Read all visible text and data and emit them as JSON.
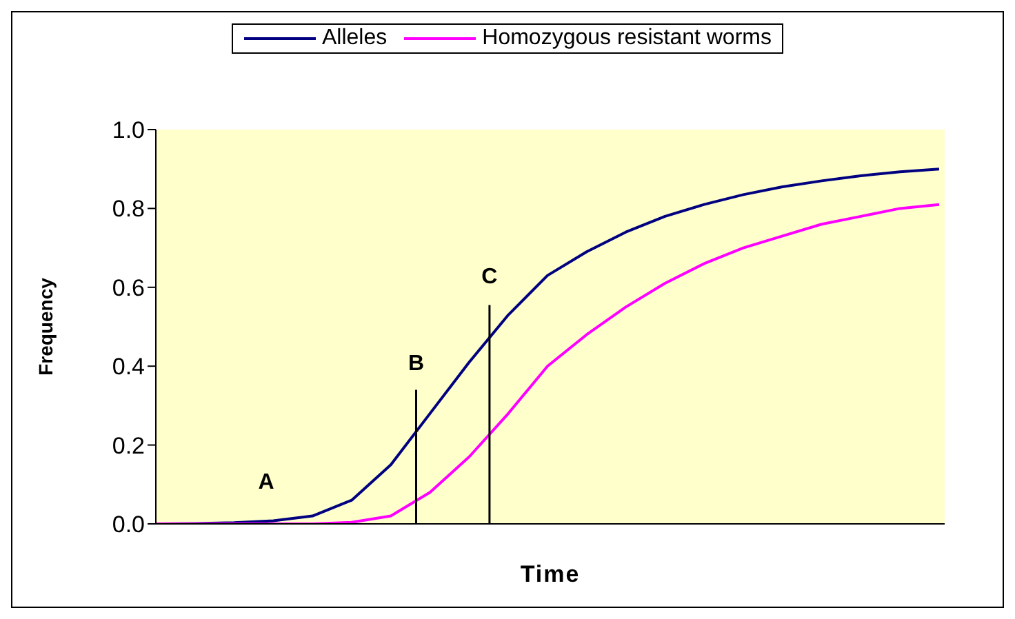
{
  "chart_data": {
    "type": "line",
    "xlabel": "Time",
    "ylabel": "Frequency",
    "categories": [
      null,
      null,
      null,
      null,
      null,
      null,
      null,
      null,
      null,
      null,
      null,
      null,
      null,
      null,
      null,
      null,
      null,
      null,
      null,
      null,
      null
    ],
    "ylim": [
      0,
      1
    ],
    "yticks": [
      {
        "value": 0,
        "label": "0.0"
      },
      {
        "value": 0.2,
        "label": "0.2"
      },
      {
        "value": 0.4,
        "label": "0.4"
      },
      {
        "value": 0.6,
        "label": "0.6"
      },
      {
        "value": 0.8,
        "label": "0.8"
      },
      {
        "value": 1,
        "label": "1.0"
      }
    ],
    "grid": false,
    "legend": "top",
    "marker": "none",
    "line_style": "solid",
    "series": [
      {
        "name": "Alleles",
        "color": "#000080",
        "values": [
          0,
          0.001,
          0.003,
          0.008,
          0.02,
          0.06,
          0.15,
          0.28,
          0.41,
          0.53,
          0.63,
          0.69,
          0.74,
          0.78,
          0.81,
          0.835,
          0.855,
          0.87,
          0.883,
          0.893,
          0.9
        ]
      },
      {
        "name": "Homozygous resistant worms",
        "color": "#ff00ff",
        "values": [
          0,
          0,
          0,
          0,
          0,
          0.004,
          0.02,
          0.08,
          0.17,
          0.28,
          0.4,
          0.48,
          0.55,
          0.61,
          0.66,
          0.7,
          0.73,
          0.76,
          0.78,
          0.8,
          0.81
        ]
      }
    ],
    "annotations": [
      "A",
      "B",
      "C"
    ]
  }
}
